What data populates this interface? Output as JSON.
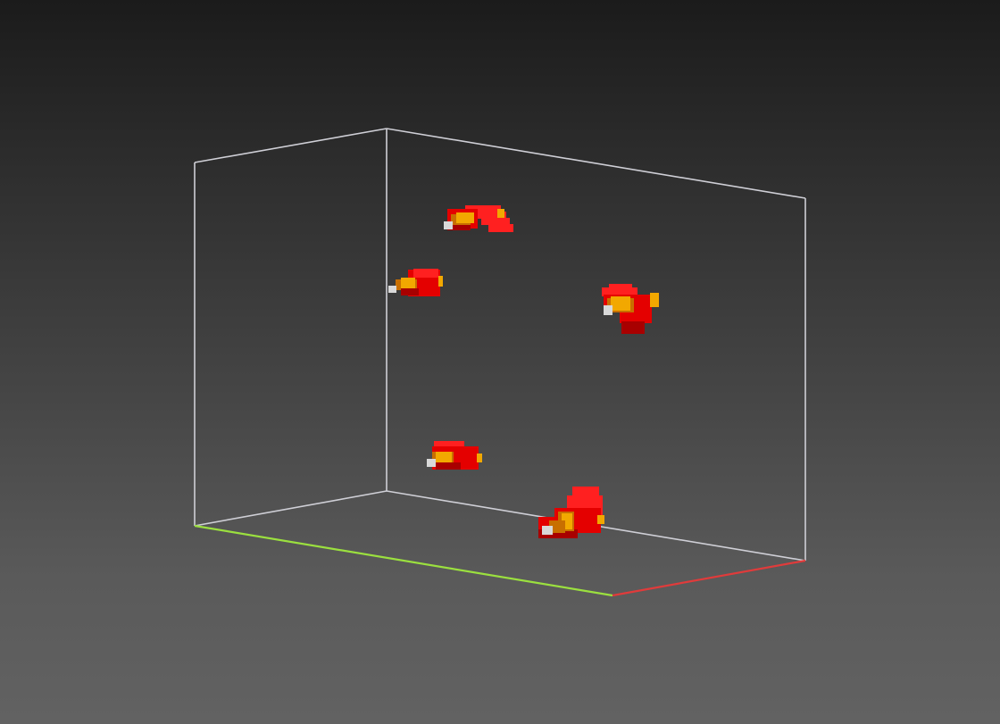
{
  "scene": {
    "background_top": "#1b1b1b",
    "background_bottom": "#626262",
    "edge_color": "#cfcfd6",
    "axis_colors": {
      "x": "#e03b3b",
      "y": "#9be03f"
    },
    "bird_colors": {
      "body": "#e40000",
      "body_dark": "#a80000",
      "wing": "#ff2020",
      "beak": "#f2a800",
      "beak_dark": "#c86f00",
      "eye": "#d9d9d9"
    },
    "birds": [
      {
        "name": "bird-1",
        "facing": "left"
      },
      {
        "name": "bird-2",
        "facing": "left"
      },
      {
        "name": "bird-3",
        "facing": "left"
      },
      {
        "name": "bird-4",
        "facing": "left"
      },
      {
        "name": "bird-5",
        "facing": "left"
      }
    ]
  }
}
